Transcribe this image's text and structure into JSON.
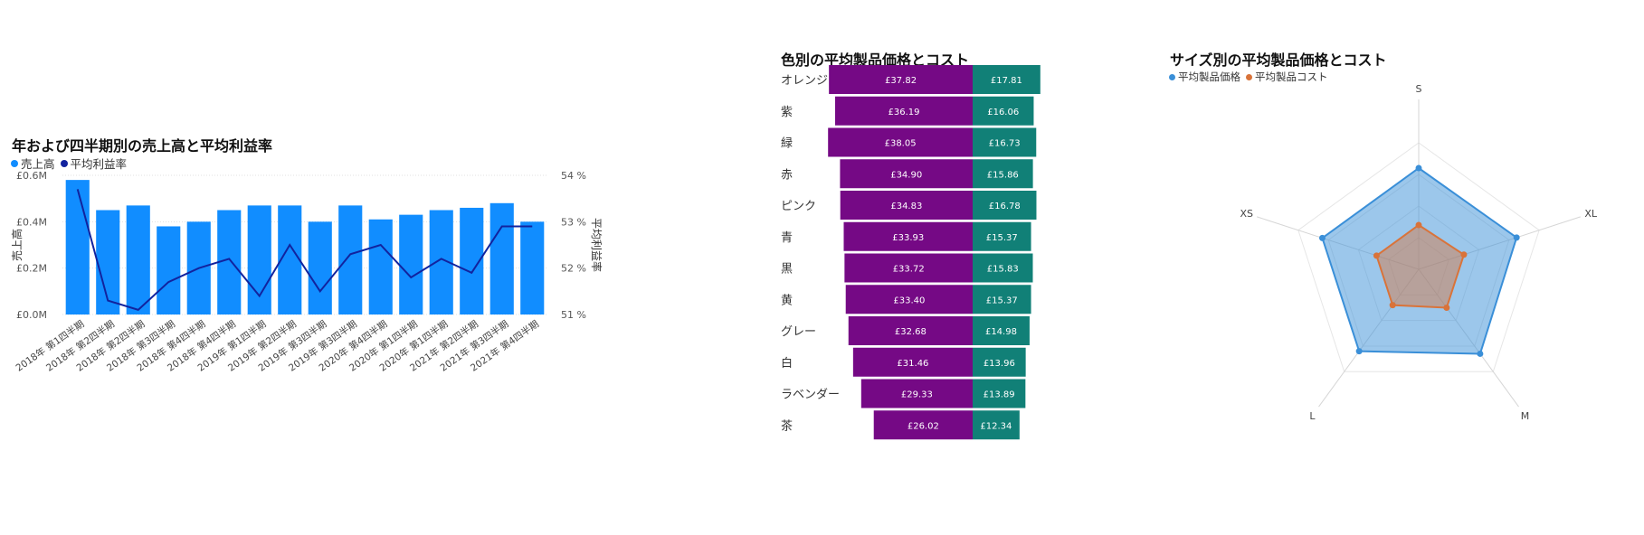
{
  "colors": {
    "bar_blue": "#118DFF",
    "line_navy": "#12239E",
    "purple": "#750985",
    "teal": "#118077",
    "radar_blue": "#3A8FD8",
    "radar_orange": "#D9733A"
  },
  "chart_data": [
    {
      "type": "bar",
      "title": "年および四半期別の売上高と平均利益率",
      "legend_position": "top-left",
      "xlabel": "",
      "ylabel": "売上高",
      "y2label": "平均利益率",
      "ylim": [
        0,
        0.6
      ],
      "y2lim": [
        51,
        54
      ],
      "yticks": [
        "£0.0M",
        "£0.2M",
        "£0.4M",
        "£0.6M"
      ],
      "y2ticks": [
        "51 %",
        "52 %",
        "53 %",
        "54 %"
      ],
      "categories": [
        "2018年 第1四半期",
        "2018年 第2四半期",
        "2018年 第2四半期",
        "2018年 第3四半期",
        "2018年 第4四半期",
        "2018年 第4四半期",
        "2019年 第1四半期",
        "2019年 第2四半期",
        "2019年 第3四半期",
        "2019年 第3四半期",
        "2020年 第4四半期",
        "2020年 第1四半期",
        "2020年 第1四半期",
        "2021年 第2四半期",
        "2021年 第3四半期",
        "2021年 第4四半期"
      ],
      "series": [
        {
          "name": "売上高",
          "kind": "bar",
          "axis": "left",
          "values": [
            0.58,
            0.45,
            0.47,
            0.38,
            0.4,
            0.45,
            0.47,
            0.47,
            0.4,
            0.47,
            0.41,
            0.43,
            0.45,
            0.46,
            0.48,
            0.4
          ]
        },
        {
          "name": "平均利益率",
          "kind": "line",
          "axis": "right",
          "values": [
            53.7,
            51.3,
            51.1,
            51.7,
            52.0,
            52.2,
            51.4,
            52.5,
            51.5,
            52.3,
            52.5,
            51.8,
            52.2,
            51.9,
            52.9,
            52.9
          ]
        }
      ]
    },
    {
      "type": "bar",
      "orientation": "horizontal-diverging",
      "title": "色別の平均製品価格とコスト",
      "categories": [
        "オレンジ",
        "紫",
        "緑",
        "赤",
        "ピンク",
        "青",
        "黒",
        "黄",
        "グレー",
        "白",
        "ラベンダー",
        "茶"
      ],
      "series": [
        {
          "name": "平均製品価格",
          "values": [
            37.82,
            36.19,
            38.05,
            34.9,
            34.83,
            33.93,
            33.72,
            33.4,
            32.68,
            31.46,
            29.33,
            26.02
          ],
          "labels": [
            "£37.82",
            "£36.19",
            "£38.05",
            "£34.90",
            "£34.83",
            "£33.93",
            "£33.72",
            "£33.40",
            "£32.68",
            "£31.46",
            "£29.33",
            "£26.02"
          ]
        },
        {
          "name": "平均製品コスト",
          "values": [
            17.81,
            16.06,
            16.73,
            15.86,
            16.78,
            15.37,
            15.83,
            15.37,
            14.98,
            13.96,
            13.89,
            12.34
          ],
          "labels": [
            "£17.81",
            "£16.06",
            "£16.73",
            "£15.86",
            "£16.78",
            "£15.37",
            "£15.83",
            "£15.37",
            "£14.98",
            "£13.96",
            "£13.89",
            "£12.34"
          ]
        }
      ]
    },
    {
      "type": "radar",
      "title": "サイズ別の平均製品価格とコスト",
      "legend_position": "top-left",
      "axes": [
        "S",
        "XL",
        "M",
        "L",
        "XS"
      ],
      "scale_max": 40,
      "series": [
        {
          "name": "平均製品価格",
          "values": [
            32,
            32.5,
            33,
            32,
            32
          ]
        },
        {
          "name": "平均製品コスト",
          "values": [
            14,
            15,
            15,
            14,
            14
          ]
        }
      ]
    }
  ]
}
